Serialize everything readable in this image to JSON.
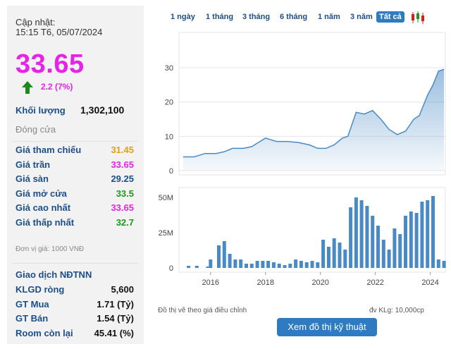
{
  "header": {
    "update_label": "Cập nhật:",
    "update_time": "15:15 T6, 05/07/2024"
  },
  "quote": {
    "price": "33.65",
    "change": "2.2 (7%)",
    "volume_label": "Khối lượng",
    "volume_value": "1,302,100",
    "close_label": "Đóng cửa"
  },
  "prices": [
    {
      "label": "Giá tham chiếu",
      "value": "31.45",
      "color": "#e0a010"
    },
    {
      "label": "Giá trần",
      "value": "33.65",
      "color": "#e524e6"
    },
    {
      "label": "Giá sàn",
      "value": "29.25",
      "color": "#1d4e89"
    },
    {
      "label": "Giá mở cửa",
      "value": "33.5",
      "color": "#1a9a1a"
    },
    {
      "label": "Giá cao nhất",
      "value": "33.65",
      "color": "#e524e6"
    },
    {
      "label": "Giá thấp nhất",
      "value": "32.7",
      "color": "#1a9a1a"
    }
  ],
  "unit_note": "Đơn vị giá: 1000 VNĐ",
  "foreign": {
    "title": "Giao dịch NĐTNN",
    "rows": [
      {
        "label": "KLGD ròng",
        "value": "5,600"
      },
      {
        "label": "GT Mua",
        "value": "1.71 (Tỷ)"
      },
      {
        "label": "GT Bán",
        "value": "1.54 (Tỷ)"
      },
      {
        "label": "Room còn lại",
        "value": "45.41 (%)"
      }
    ]
  },
  "tabs": [
    {
      "label": "1 ngày",
      "active": false
    },
    {
      "label": "1 tháng",
      "active": false
    },
    {
      "label": "3 tháng",
      "active": false
    },
    {
      "label": "6 tháng",
      "active": false
    },
    {
      "label": "1 năm",
      "active": false
    },
    {
      "label": "3 năm",
      "active": false
    },
    {
      "label": "Tất cả",
      "active": true
    }
  ],
  "chart_data": [
    {
      "type": "area",
      "y_ticks": [
        "30",
        "20",
        "10",
        "0"
      ],
      "ylim": [
        0,
        30
      ],
      "x": [
        2015.0,
        2015.4,
        2015.8,
        2016.2,
        2016.5,
        2016.8,
        2017.2,
        2017.5,
        2017.8,
        2018.0,
        2018.4,
        2018.8,
        2019.2,
        2019.6,
        2019.9,
        2020.2,
        2020.5,
        2020.8,
        2021.0,
        2021.3,
        2021.6,
        2021.9,
        2022.2,
        2022.5,
        2022.8,
        2023.1,
        2023.4,
        2023.6,
        2023.9,
        2024.1,
        2024.3,
        2024.5
      ],
      "values": [
        4,
        4,
        5,
        5,
        5.5,
        6.5,
        6.5,
        7,
        8.5,
        9.5,
        8.5,
        8.5,
        8.2,
        7.5,
        6.5,
        6.5,
        7.5,
        9.5,
        10,
        17,
        16.5,
        17.5,
        15,
        12,
        10.5,
        11.5,
        15,
        16,
        22,
        25,
        29,
        29.5
      ],
      "color": "#4a8ac4"
    },
    {
      "type": "bar",
      "y_ticks": [
        "50M",
        "25M",
        "0"
      ],
      "ylim": [
        0,
        55000000
      ],
      "x_ticks": [
        "2016",
        "2018",
        "2020",
        "2022",
        "2024"
      ],
      "x": [
        2015.2,
        2015.5,
        2015.9,
        2016.0,
        2016.3,
        2016.5,
        2016.7,
        2016.9,
        2017.1,
        2017.3,
        2017.5,
        2017.7,
        2017.9,
        2018.1,
        2018.3,
        2018.5,
        2018.7,
        2018.9,
        2019.1,
        2019.3,
        2019.5,
        2019.7,
        2019.9,
        2020.1,
        2020.3,
        2020.5,
        2020.7,
        2020.9,
        2021.1,
        2021.3,
        2021.5,
        2021.7,
        2021.9,
        2022.1,
        2022.3,
        2022.5,
        2022.7,
        2022.9,
        2023.1,
        2023.3,
        2023.5,
        2023.7,
        2023.9,
        2024.1,
        2024.3,
        2024.5
      ],
      "values": [
        1500000,
        1500000,
        1000000,
        6000000,
        16000000,
        19000000,
        10000000,
        6000000,
        6000000,
        3000000,
        3000000,
        5000000,
        5000000,
        5000000,
        4000000,
        3000000,
        2000000,
        3000000,
        6000000,
        5000000,
        4000000,
        5000000,
        4000000,
        20000000,
        15000000,
        21000000,
        18000000,
        13000000,
        43000000,
        50000000,
        48000000,
        44000000,
        37000000,
        30000000,
        20000000,
        13000000,
        28000000,
        24000000,
        37000000,
        40000000,
        39000000,
        47000000,
        48000000,
        51000000,
        6000000,
        5000000
      ],
      "color": "#4a8ac4"
    }
  ],
  "notes": {
    "left": "Đồ thị vẽ theo giá điều chỉnh",
    "right": "đv KLg: 10,000cp"
  },
  "button_tech": "Xem đồ thị kỹ thuật",
  "icons": {
    "candle": "candlestick-chart-icon",
    "arrow": "arrow-up-icon"
  }
}
